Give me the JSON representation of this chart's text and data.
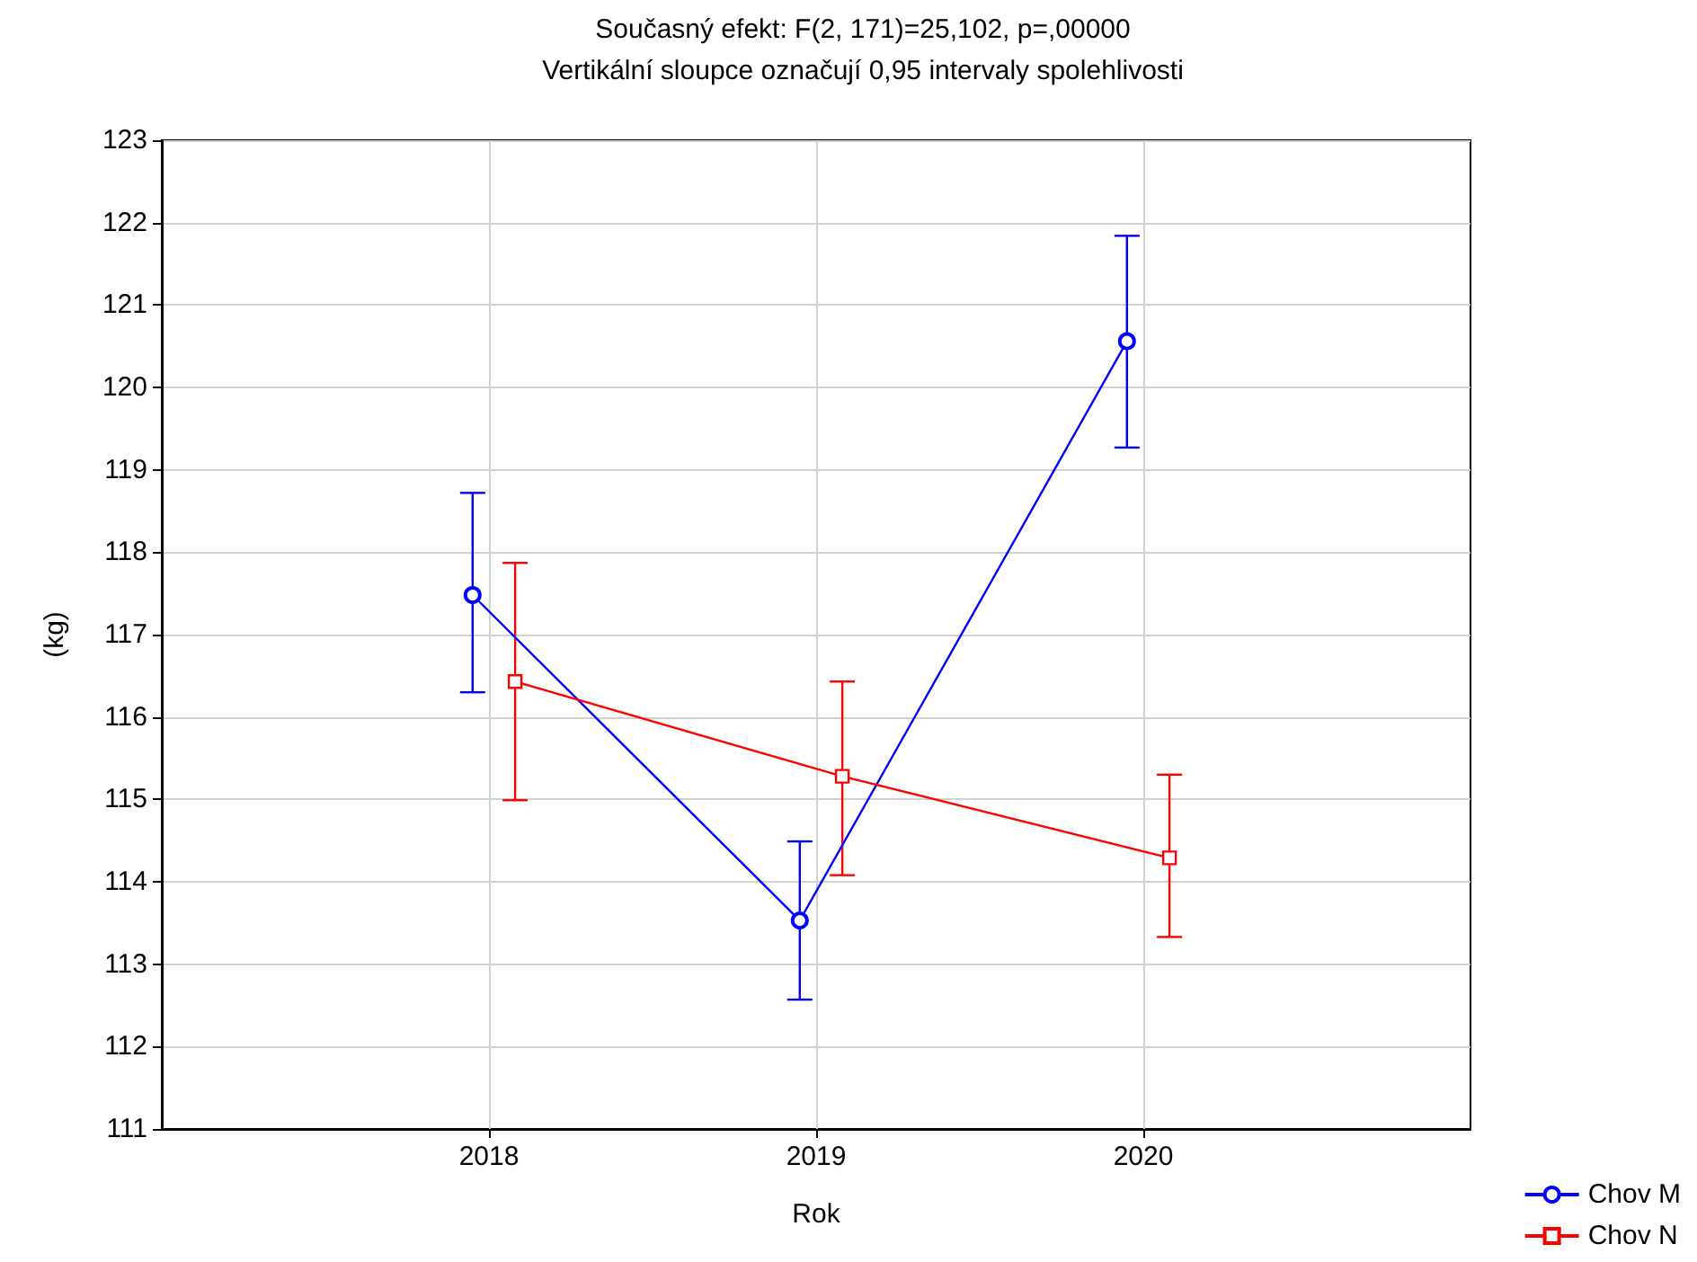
{
  "chart_data": {
    "type": "line",
    "title": "Současný efekt: F(2, 171)=25,102, p=,00000",
    "subtitle": "Vertikální sloupce označují 0,95 intervaly spolehlivosti",
    "xlabel": "Rok",
    "ylabel": "(kg)",
    "xlim": [
      2017,
      2021
    ],
    "xticks": [
      2018,
      2019,
      2020
    ],
    "ylim": [
      111,
      123
    ],
    "yticks": [
      111,
      112,
      113,
      114,
      115,
      116,
      117,
      118,
      119,
      120,
      121,
      122,
      123
    ],
    "grid": true,
    "legend": "bottom right",
    "series": [
      {
        "name": "Chov M",
        "color": "#0000ff",
        "marker": "circle",
        "x": [
          2017.95,
          2018.95,
          2019.95
        ],
        "values": [
          117.48,
          113.53,
          120.56
        ],
        "errors": [
          [
            116.3,
            118.72
          ],
          [
            112.57,
            114.49
          ],
          [
            119.27,
            121.84
          ]
        ]
      },
      {
        "name": "Chov N",
        "color": "#ff0000",
        "marker": "square",
        "x": [
          2018.08,
          2019.08,
          2020.08
        ],
        "values": [
          116.43,
          115.28,
          114.29
        ],
        "errors": [
          [
            114.99,
            117.87
          ],
          [
            114.08,
            116.43
          ],
          [
            113.33,
            115.3
          ]
        ]
      }
    ]
  }
}
